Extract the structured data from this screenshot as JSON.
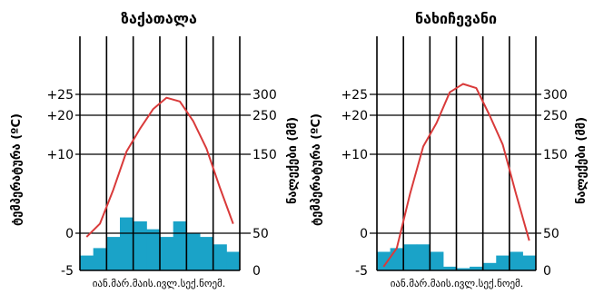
{
  "chart_data": [
    {
      "type": "climate-diagram",
      "title": "ზაქათალა",
      "months_label": "იან.მარ.მაის.ივლ.სექ.ნოემ.",
      "temp_ylabel": "ტემპერატურა (ºC)",
      "precip_ylabel": "ნალექები (მმ)",
      "temp_ticks": [
        "-5",
        "0",
        "+10",
        "+20",
        "+25"
      ],
      "precip_ticks": [
        "0",
        "50",
        "150",
        "250",
        "300"
      ],
      "temp_range": [
        -5,
        25
      ],
      "precip_range": [
        0,
        300
      ],
      "precipitation": [
        20,
        30,
        45,
        70,
        65,
        55,
        45,
        65,
        50,
        45,
        35,
        25
      ],
      "temperature": [
        -0.5,
        1.2,
        5.5,
        10.7,
        16.5,
        21.5,
        24.2,
        23.3,
        18.5,
        11.5,
        5.8,
        1.2
      ],
      "colors": {
        "bars": "#1aa3c8",
        "line": "#d93a3a"
      }
    },
    {
      "type": "climate-diagram",
      "title": "ნახიჩევანი",
      "months_label": "იან.მარ.მაის.ივლ.სექ.ნოემ.",
      "temp_ylabel": "ტემპერატურა (ºC)",
      "precip_ylabel": "ნალექები (მმ)",
      "temp_ticks": [
        "-5",
        "0",
        "+10",
        "+20",
        "+25"
      ],
      "precip_ticks": [
        "0",
        "50",
        "150",
        "250",
        "300"
      ],
      "temp_range": [
        -5,
        25
      ],
      "precip_range": [
        0,
        300
      ],
      "precipitation": [
        25,
        30,
        35,
        35,
        25,
        5,
        3,
        5,
        10,
        20,
        25,
        20
      ],
      "temperature": [
        -4.5,
        -2,
        5,
        12,
        18,
        25.5,
        27.5,
        26.5,
        20,
        12.5,
        5,
        -1
      ],
      "colors": {
        "bars": "#1aa3c8",
        "line": "#d93a3a"
      }
    }
  ]
}
